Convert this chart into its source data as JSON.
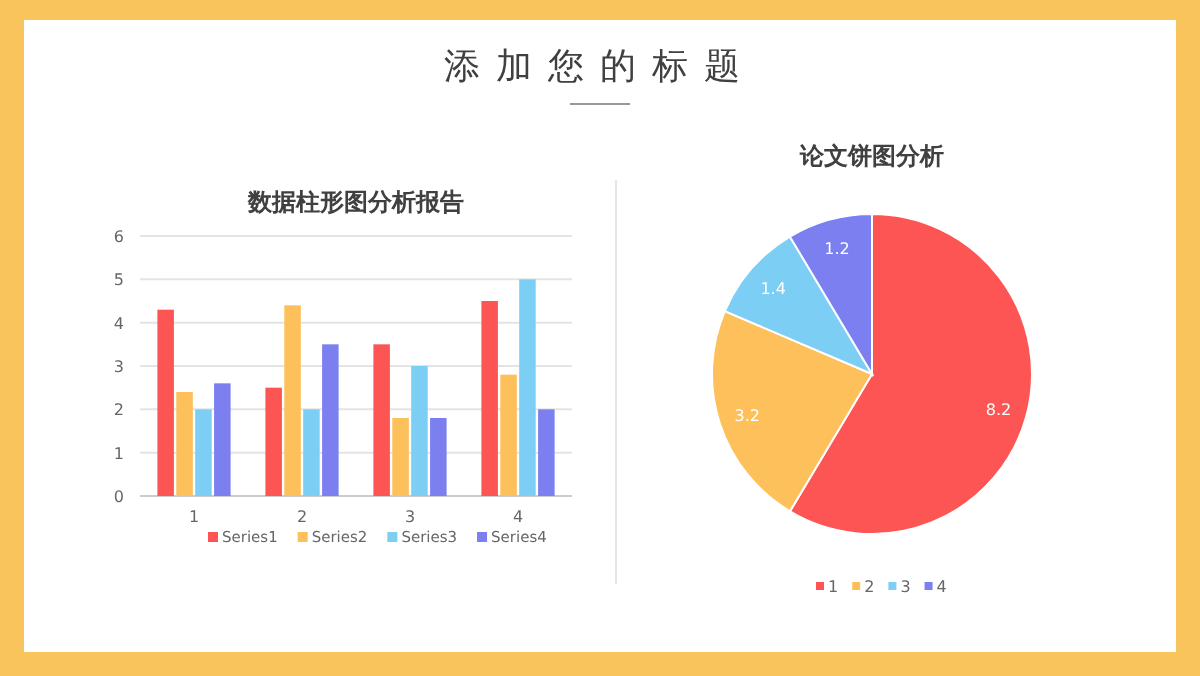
{
  "chart_data": [
    {
      "type": "other",
      "title": "添加您的标题"
    },
    {
      "type": "bar",
      "title": "数据柱形图分析报告",
      "categories": [
        "1",
        "2",
        "3",
        "4"
      ],
      "series": [
        {
          "name": "Series1",
          "color": "#fd5554",
          "values": [
            4.3,
            2.5,
            3.5,
            4.5
          ]
        },
        {
          "name": "Series2",
          "color": "#fdc05a",
          "values": [
            2.4,
            4.4,
            1.8,
            2.8
          ]
        },
        {
          "name": "Series3",
          "color": "#7ccef5",
          "values": [
            2,
            2,
            3,
            5
          ]
        },
        {
          "name": "Series4",
          "color": "#7b7ff0",
          "values": [
            2.6,
            3.5,
            1.8,
            2
          ]
        }
      ],
      "ylim": [
        0,
        6
      ],
      "yticks": [
        0,
        1,
        2,
        3,
        4,
        5,
        6
      ],
      "grid": "y",
      "legend": "bottom"
    },
    {
      "type": "pie",
      "title": "论文饼图分析",
      "categories": [
        "1",
        "2",
        "3",
        "4"
      ],
      "values": [
        8.2,
        3.2,
        1.4,
        1.2
      ],
      "colors": [
        "#fd5554",
        "#fdc05a",
        "#7ccef5",
        "#7b7ff0"
      ],
      "data_labels": true,
      "legend": "bottom"
    }
  ]
}
